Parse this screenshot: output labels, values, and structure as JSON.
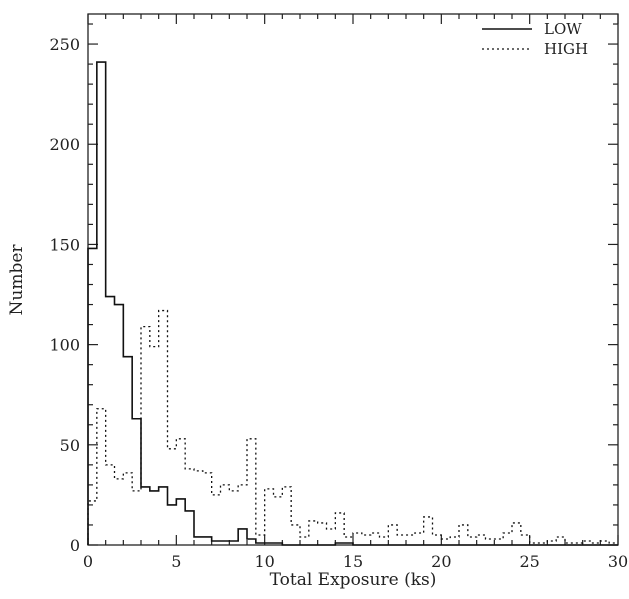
{
  "chart_data": {
    "type": "histogram",
    "xlabel": "Total Exposure (ks)",
    "ylabel": "Number",
    "xlim": [
      0,
      30
    ],
    "ylim": [
      0,
      265
    ],
    "x_ticks": [
      0,
      5,
      10,
      15,
      20,
      25,
      30
    ],
    "y_ticks": [
      0,
      50,
      100,
      150,
      200,
      250
    ],
    "bin_width": 0.5,
    "bin_edges_start": 0,
    "legend_position": "top-right",
    "series": [
      {
        "name": "LOW",
        "style": "solid",
        "values": [
          148,
          241,
          124,
          120,
          94,
          63,
          29,
          27,
          29,
          20,
          23,
          17,
          4,
          4,
          2,
          2,
          2,
          8,
          3,
          1,
          1,
          1,
          0,
          0,
          0,
          0,
          0,
          0,
          1,
          1,
          0,
          0,
          0,
          0,
          0,
          0,
          0,
          0,
          0,
          0,
          0,
          0,
          0,
          0,
          0,
          0,
          0,
          0,
          0,
          0,
          0,
          0,
          0,
          0,
          0,
          0,
          0,
          0,
          0,
          0
        ]
      },
      {
        "name": "HIGH",
        "style": "dotted",
        "values": [
          22,
          68,
          40,
          33,
          36,
          27,
          109,
          99,
          117,
          48,
          53,
          38,
          37,
          36,
          25,
          30,
          27,
          30,
          53,
          5,
          28,
          24,
          29,
          10,
          4,
          12,
          11,
          8,
          16,
          4,
          6,
          5,
          6,
          4,
          10,
          5,
          5,
          6,
          14,
          5,
          3,
          4,
          10,
          4,
          5,
          3,
          3,
          6,
          11,
          5,
          1,
          1,
          2,
          4,
          1,
          1,
          2,
          1,
          2,
          1
        ]
      }
    ]
  }
}
